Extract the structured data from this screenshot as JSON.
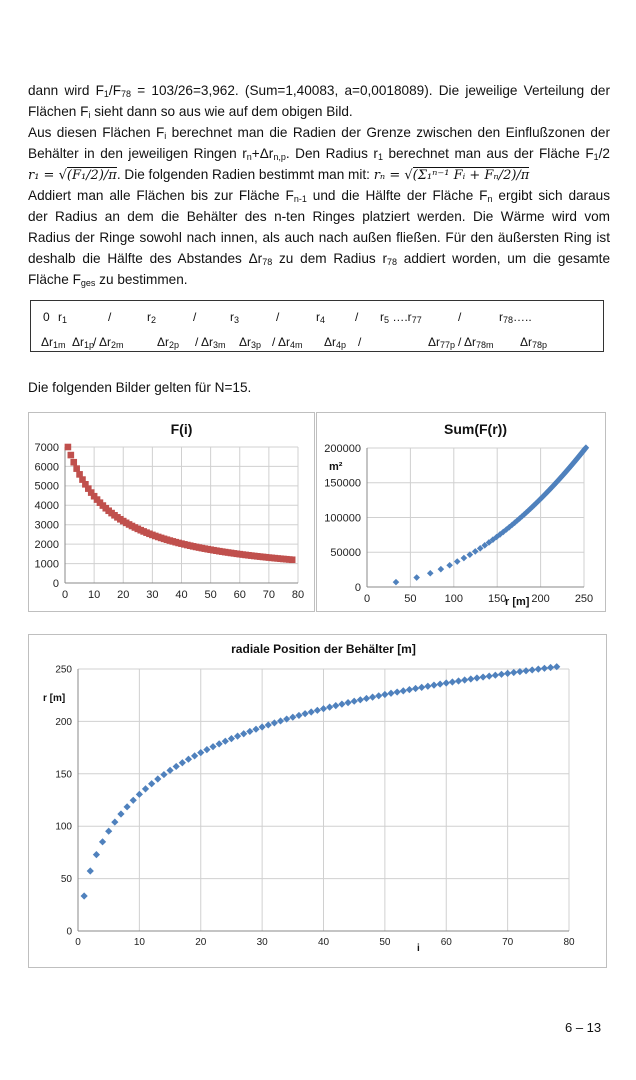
{
  "paragraph": [
    {
      "justify": true,
      "segments": [
        {
          "t": "dann wird F"
        },
        {
          "sub": "1"
        },
        {
          "t": "/F"
        },
        {
          "sub": "78"
        },
        {
          "t": " = 103/26=3,962. (Sum=1,40083, a=0,0018089). Die jeweilige Verteilung der"
        }
      ]
    },
    {
      "justify": false,
      "segments": [
        {
          "t": "Flächen F"
        },
        {
          "sub": "i"
        },
        {
          "t": " sieht dann so aus wie auf dem obigen Bild."
        }
      ]
    },
    {
      "justify": true,
      "segments": [
        {
          "t": "Aus diesen Flächen F"
        },
        {
          "sub": "i"
        },
        {
          "t": " berechnet man die Radien der Grenze zwischen den Einflußzonen der"
        }
      ]
    },
    {
      "justify": true,
      "segments": [
        {
          "t": "Behälter in den jeweiligen Ringen r"
        },
        {
          "sub": "n"
        },
        {
          "t": "+Δr"
        },
        {
          "sub": "n,p"
        },
        {
          "t": ". Den Radius r"
        },
        {
          "sub": "1"
        },
        {
          "t": " berechnet man aus der Fläche F"
        },
        {
          "sub": "1"
        },
        {
          "t": "/2"
        }
      ]
    },
    {
      "justify": false,
      "segments": [
        {
          "math": "r₁ = √"
        },
        {
          "rad": "(F₁/2)/π"
        },
        {
          "t": ". Die folgenden Radien bestimmt man mit: "
        },
        {
          "math": "rₙ = √"
        },
        {
          "rad": "(Σ₁ⁿ⁻¹ Fᵢ  + Fₙ/2)/π"
        }
      ]
    },
    {
      "justify": true,
      "segments": [
        {
          "t": "Addiert man alle Flächen bis zur Fläche F"
        },
        {
          "sub": "n-1"
        },
        {
          "t": "  und die Hälfte der Fläche F"
        },
        {
          "sub": "n"
        },
        {
          "t": "  ergibt sich daraus"
        }
      ]
    },
    {
      "justify": true,
      "segments": [
        {
          "t": "der Radius an dem die Behälter des n-ten Ringes platziert werden. Die Wärme wird vom"
        }
      ]
    },
    {
      "justify": true,
      "segments": [
        {
          "t": "Radius der Ringe sowohl nach innen, als auch nach außen fließen. Für den äußersten Ring ist"
        }
      ]
    },
    {
      "justify": true,
      "segments": [
        {
          "t": "deshalb die Hälfte des Abstandes Δr"
        },
        {
          "sub": "78"
        },
        {
          "t": "  zu dem Radius r"
        },
        {
          "sub": "78"
        },
        {
          "t": " addiert worden, um die gesamte"
        }
      ]
    },
    {
      "justify": false,
      "segments": [
        {
          "t": "Fläche F"
        },
        {
          "sub": "ges"
        },
        {
          "t": " zu bestimmen."
        }
      ]
    }
  ],
  "ring_box": {
    "row1": [
      [
        {
          "t": "0"
        }
      ],
      [
        {
          "t": "r"
        },
        {
          "sub": "1"
        }
      ],
      [
        {
          "t": "/"
        }
      ],
      [
        {
          "t": "r"
        },
        {
          "sub": "2"
        }
      ],
      [
        {
          "t": "/"
        }
      ],
      [
        {
          "t": "r"
        },
        {
          "sub": "3"
        }
      ],
      [
        {
          "t": "/"
        }
      ],
      [
        {
          "t": "r"
        },
        {
          "sub": "4"
        }
      ],
      [
        {
          "t": "/"
        }
      ],
      [
        {
          "t": "r"
        },
        {
          "sub": "5"
        },
        {
          "t": " ….r"
        },
        {
          "sub": "77"
        }
      ],
      [
        {
          "t": "/"
        }
      ],
      [
        {
          "t": "r"
        },
        {
          "sub": "78"
        },
        {
          "t": "….."
        }
      ]
    ],
    "row2": [
      [
        {
          "t": "Δr"
        },
        {
          "sub": "1m"
        }
      ],
      [
        {
          "t": "Δr"
        },
        {
          "sub": "1p"
        }
      ],
      [
        {
          "t": "/ Δr"
        },
        {
          "sub": "2m"
        }
      ],
      [
        {
          "t": "Δr"
        },
        {
          "sub": "2p"
        }
      ],
      [
        {
          "t": "/ Δr"
        },
        {
          "sub": "3m"
        }
      ],
      [
        {
          "t": "Δr"
        },
        {
          "sub": "3p"
        }
      ],
      [
        {
          "t": "/ Δr"
        },
        {
          "sub": "4m"
        }
      ],
      [
        {
          "t": "Δr"
        },
        {
          "sub": "4p"
        }
      ],
      [
        {
          "t": "/"
        }
      ],
      [
        {
          "t": "Δr"
        },
        {
          "sub": "77p"
        }
      ],
      [
        {
          "t": "/ Δr"
        },
        {
          "sub": "78m"
        }
      ],
      [
        {
          "t": "Δr"
        },
        {
          "sub": "78p"
        }
      ]
    ]
  },
  "caption": "Die folgenden Bilder gelten für N=15.",
  "page_number": "6 – 13",
  "chart_data": [
    {
      "id": "fi",
      "type": "scatter",
      "title": "F(i)",
      "xlabel": "",
      "ylabel": "",
      "xlim": [
        0,
        80
      ],
      "ylim": [
        0,
        7000
      ],
      "xticks": [
        0,
        10,
        20,
        30,
        40,
        50,
        60,
        70,
        80
      ],
      "yticks": [
        0,
        1000,
        2000,
        3000,
        4000,
        5000,
        6000,
        7000
      ],
      "grid": true,
      "marker": "square",
      "color": "#c0504d",
      "x_from": 1,
      "values": [
        7000,
        6585,
        6217,
        5887,
        5591,
        5323,
        5080,
        4858,
        4654,
        4467,
        4294,
        4135,
        3986,
        3848,
        3719,
        3599,
        3486,
        3380,
        3280,
        3186,
        3097,
        3013,
        2934,
        2858,
        2787,
        2718,
        2654,
        2592,
        2533,
        2476,
        2422,
        2370,
        2321,
        2273,
        2228,
        2184,
        2142,
        2101,
        2062,
        2025,
        1989,
        1954,
        1920,
        1887,
        1856,
        1825,
        1796,
        1767,
        1740,
        1713,
        1687,
        1662,
        1637,
        1613,
        1590,
        1568,
        1546,
        1525,
        1504,
        1484,
        1464,
        1445,
        1427,
        1409,
        1391,
        1374,
        1357,
        1341,
        1325,
        1309,
        1294,
        1279,
        1264,
        1250,
        1236,
        1223,
        1209,
        1196
      ]
    },
    {
      "id": "sum",
      "type": "scatter",
      "title": "Sum(F(r))",
      "xlabel": "r [m]",
      "ylabel": "m²",
      "xlim": [
        0,
        250
      ],
      "ylim": [
        0,
        200000
      ],
      "xticks": [
        0,
        50,
        100,
        150,
        200,
        250
      ],
      "yticks": [
        0,
        50000,
        100000,
        150000,
        200000
      ],
      "grid": true,
      "marker": "diamond",
      "color": "#4f81bd",
      "derived": "x = r(i), y = cumulative sum of F(1..i)"
    },
    {
      "id": "ri",
      "type": "scatter",
      "title": "radiale Position der Behälter [m]",
      "xlabel": "i",
      "ylabel": "r [m]",
      "xlim": [
        0,
        80
      ],
      "ylim": [
        0,
        250
      ],
      "xticks": [
        0,
        10,
        20,
        30,
        40,
        50,
        60,
        70,
        80
      ],
      "yticks": [
        0,
        50,
        100,
        150,
        200,
        250
      ],
      "grid": true,
      "marker": "diamond",
      "color": "#4f81bd",
      "derived": "r(n) = sqrt((sum F(1..n-1) + F(n)/2)/pi)"
    }
  ]
}
